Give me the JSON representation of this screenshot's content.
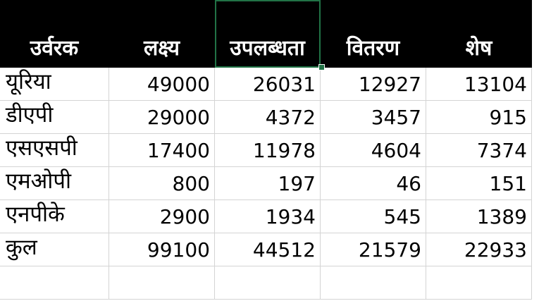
{
  "headers": [
    "उर्वरक",
    "लक्ष्य",
    "उपलब्धता",
    "वितरण",
    "शेष"
  ],
  "rows": [
    {
      "name": "यूरिया",
      "values": [
        "49000",
        "26031",
        "12927",
        "13104"
      ]
    },
    {
      "name": "डीएपी",
      "values": [
        "29000",
        "4372",
        "3457",
        "915"
      ]
    },
    {
      "name": "एसएसपी",
      "values": [
        "17400",
        "11978",
        "4604",
        "7374"
      ]
    },
    {
      "name": "एमओपी",
      "values": [
        "800",
        "197",
        "46",
        "151"
      ]
    },
    {
      "name": "एनपीके",
      "values": [
        "2900",
        "1934",
        "545",
        "1389"
      ]
    },
    {
      "name": "कुल",
      "values": [
        "99100",
        "44512",
        "21579",
        "22933"
      ]
    }
  ],
  "selected_cell": "header-2",
  "colors": {
    "header_bg": "#000000",
    "header_text": "#ffffff",
    "gridline": "#d4d4d4",
    "selection": "#217346"
  }
}
